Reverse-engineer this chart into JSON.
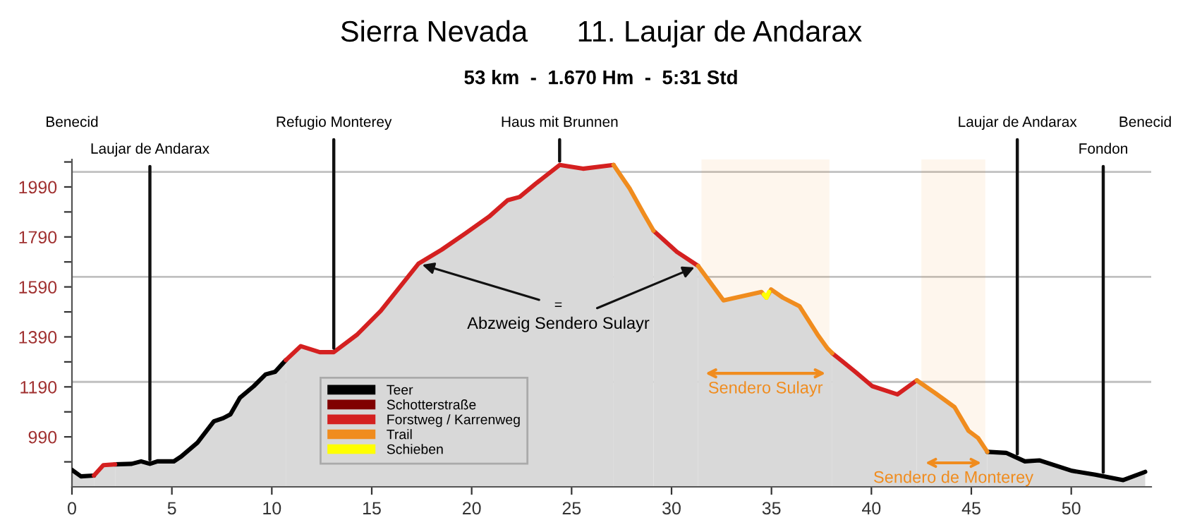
{
  "chart_data": {
    "type": "area",
    "title": "Sierra Nevada      11. Laujar de Andarax",
    "subtitle": "53 km  -  1.670 Hm  -  5:31 Std",
    "xlim": [
      0,
      54
    ],
    "ylim": [
      790,
      2100
    ],
    "xticks": [
      0,
      5,
      10,
      15,
      20,
      25,
      30,
      35,
      40,
      45,
      50
    ],
    "yticks": [
      {
        "value": 890,
        "label": null
      },
      990,
      {
        "value": 1090,
        "label": null
      },
      1190,
      {
        "value": 1290,
        "label": null
      },
      1390,
      {
        "value": 1490,
        "label": null
      },
      1590,
      {
        "value": 1690,
        "label": null
      },
      1790,
      {
        "value": 1890,
        "label": null
      },
      1990,
      {
        "value": 2090,
        "label": null
      }
    ],
    "grid": false,
    "legend": "bottom left",
    "line_style": "solid",
    "marker": "none",
    "ref_lines": [
      {
        "axis": "y",
        "value": 2050,
        "color": "#c0c0c0"
      },
      {
        "axis": "y",
        "value": 1630,
        "color": "#c0c0c0"
      },
      {
        "axis": "y",
        "value": 1210,
        "color": "#c0c0c0"
      }
    ],
    "bands": [
      {
        "axis": "x",
        "from": 31.5,
        "to": 37.9,
        "label": "Sendero Sulayr",
        "color": "#f08c1e"
      },
      {
        "axis": "x",
        "from": 42.5,
        "to": 45.7,
        "label": "Sendero de Monterey",
        "color": "#f08c1e"
      }
    ],
    "annotations": [
      "Benecid",
      {
        "text": "Laujar de Andarax",
        "x": 3.9,
        "y": 882
      },
      {
        "text": "Refugio Monterey",
        "x": 13.1,
        "y": 1329
      },
      {
        "text": "Haus mit Brunnen",
        "x": 24.4,
        "y": 2078
      },
      {
        "text": "Laujar de Andarax",
        "x": 47.3,
        "y": 906
      },
      {
        "text": "Fondon",
        "x": 51.6,
        "y": 833
      },
      "Benecid",
      {
        "text": "=",
        "x": 17.34,
        "y": 1683
      },
      {
        "text": "Abzweig Sendero Sulayr",
        "x": 31.33,
        "y": 1674
      }
    ],
    "series": [
      {
        "name": "Teer",
        "color": "#000000",
        "x": [
          0,
          0.45,
          1.1
        ],
        "values": [
          858,
          832,
          835
        ]
      },
      {
        "color": "#000000",
        "x": [
          2.16,
          2.99,
          3.46,
          3.9,
          4.28,
          5.1,
          5.46,
          6.28,
          7.1,
          7.57,
          7.93,
          8.4,
          9.1,
          9.69,
          10.16,
          10.7
        ],
        "values": [
          880,
          882,
          892,
          882,
          892,
          892,
          911,
          967,
          1052,
          1065,
          1080,
          1146,
          1193,
          1240,
          1250,
          1297
        ]
      },
      {
        "color": "#000000",
        "x": [
          45.8,
          46.74,
          47.68,
          48.4,
          50.04,
          51.2,
          52.6,
          53.7
        ],
        "values": [
          930,
          926,
          892,
          896,
          854,
          839,
          817,
          850
        ]
      },
      {
        "name": "Schotterstraße",
        "color": "#800000"
      },
      {
        "name": "Forstweg / Karrenweg",
        "color": "#d42020",
        "x": [
          1.1,
          1.57,
          2.16
        ],
        "values": [
          835,
          877,
          880
        ]
      },
      {
        "color": "#d42020",
        "x": [
          10.7,
          11.45,
          12.4,
          13.1,
          14.28,
          15.45,
          17.34,
          18.5,
          19.7,
          20.87,
          21.8,
          22.4,
          23.2,
          24.4,
          25.57,
          27.1
        ],
        "values": [
          1297,
          1353,
          1329,
          1329,
          1400,
          1494,
          1683,
          1739,
          1805,
          1871,
          1937,
          1950,
          2003,
          2078,
          2063,
          2078
        ]
      },
      {
        "color": "#d42020",
        "x": [
          29.1,
          30.27,
          31.33
        ],
        "values": [
          1815,
          1730,
          1674
        ]
      },
      {
        "color": "#d42020",
        "x": [
          38.04,
          39.2,
          40.04,
          41.3,
          42.27
        ],
        "values": [
          1325,
          1250,
          1193,
          1160,
          1216
        ]
      },
      {
        "name": "Trail",
        "color": "#f08c1e",
        "x": [
          27.1,
          27.9,
          28.63,
          29.1
        ],
        "values": [
          2078,
          1984,
          1880,
          1815
        ]
      },
      {
        "color": "#f08c1e",
        "x": [
          31.33,
          32.6,
          34.5,
          34.75,
          34.98,
          35.57,
          36.4,
          37.3,
          37.8,
          38.04
        ],
        "values": [
          1674,
          1536,
          1570,
          1547,
          1580,
          1547,
          1513,
          1400,
          1344,
          1325
        ]
      },
      {
        "color": "#f08c1e",
        "x": [
          42.27,
          43.2,
          44.16,
          44.86,
          45.33,
          45.8
        ],
        "values": [
          1216,
          1165,
          1109,
          1014,
          986,
          930
        ]
      },
      {
        "name": "Schieben",
        "type": "line",
        "color": "#ffff00",
        "x": [
          34.62,
          34.75,
          34.88
        ],
        "values": [
          1560,
          1547,
          1570
        ]
      }
    ]
  }
}
